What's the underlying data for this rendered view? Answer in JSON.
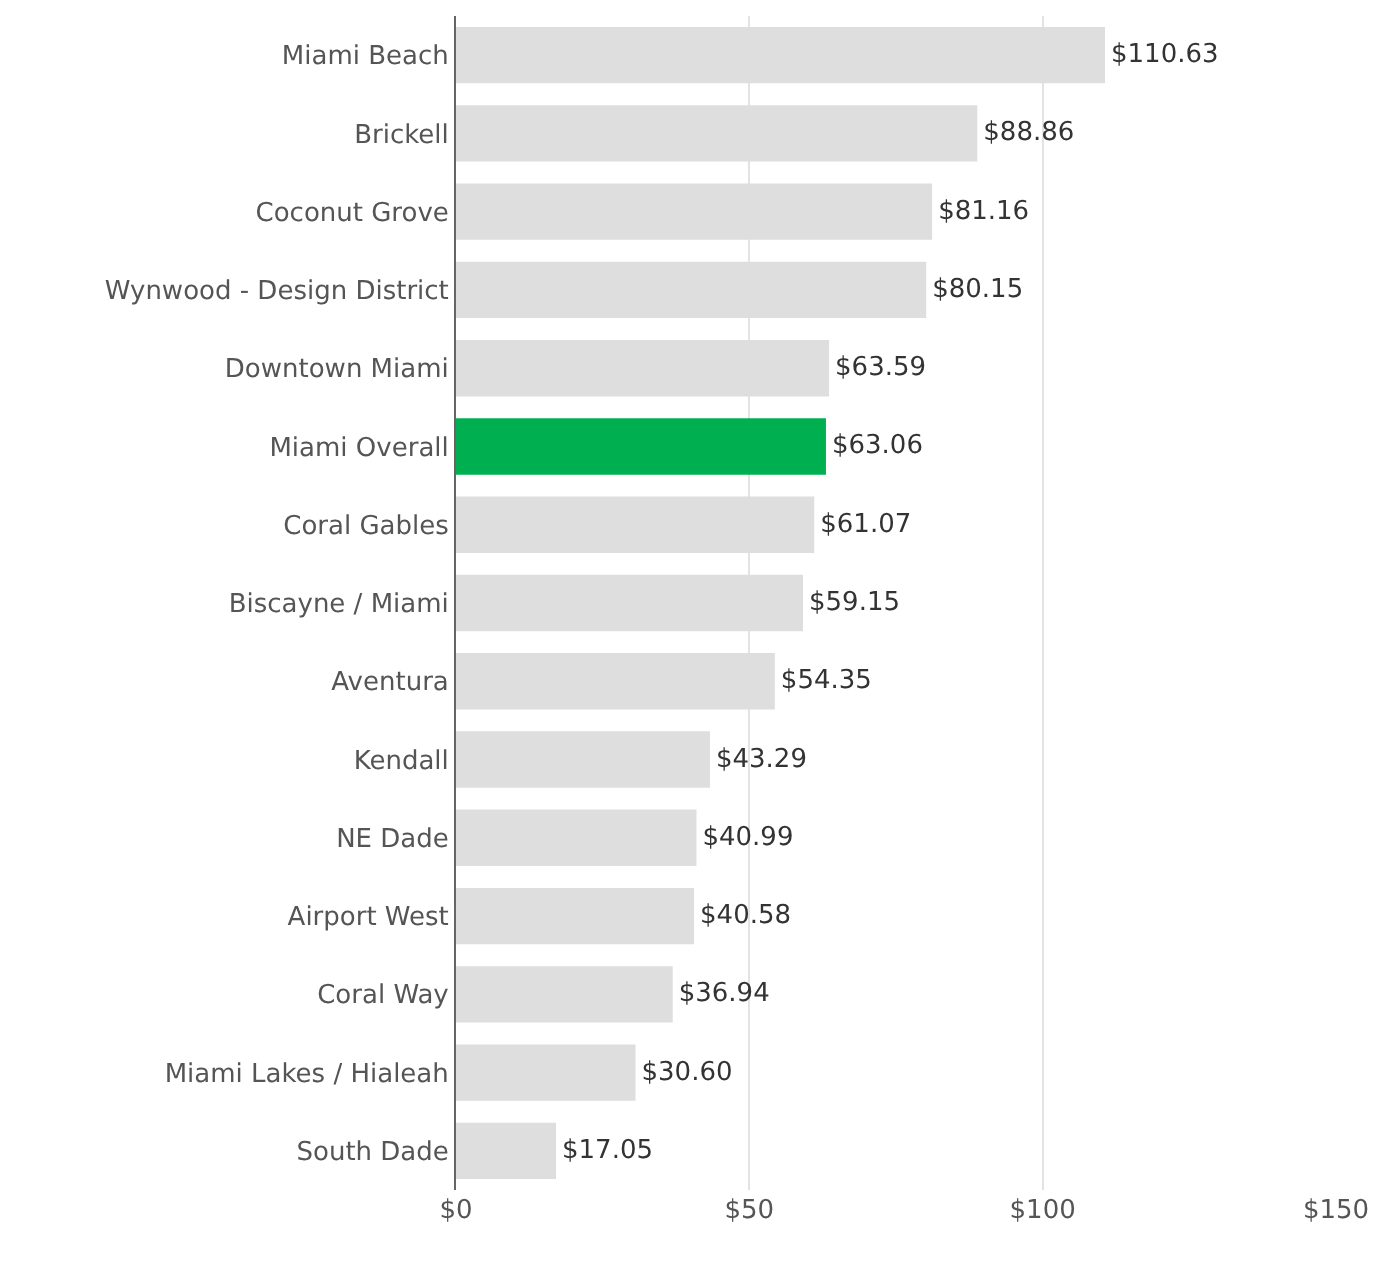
{
  "chart_data": {
    "type": "bar",
    "orientation": "horizontal",
    "categories": [
      "Miami Beach",
      "Brickell",
      "Coconut Grove",
      "Wynwood - Design District",
      "Downtown Miami",
      "Miami Overall",
      "Coral Gables",
      "Biscayne / Miami",
      "Aventura",
      "Kendall",
      "NE Dade",
      "Airport West",
      "Coral Way",
      "Miami Lakes / Hialeah",
      "South Dade"
    ],
    "values": [
      110.63,
      88.86,
      81.16,
      80.15,
      63.59,
      63.06,
      61.07,
      59.15,
      54.35,
      43.29,
      40.99,
      40.58,
      36.94,
      30.6,
      17.05
    ],
    "colors": [
      "#dedede",
      "#dedede",
      "#dedede",
      "#dedede",
      "#dedede",
      "#00b050",
      "#dedede",
      "#dedede",
      "#dedede",
      "#dedede",
      "#dedede",
      "#dedede",
      "#dedede",
      "#dedede",
      "#dedede"
    ],
    "value_labels": [
      "$110.63",
      "$88.86",
      "$81.16",
      "$80.15",
      "$63.59",
      "$63.06",
      "$61.07",
      "$59.15",
      "$54.35",
      "$43.29",
      "$40.99",
      "$40.58",
      "$36.94",
      "$30.60",
      "$17.05"
    ],
    "xlim": [
      0,
      150
    ],
    "xticks": [
      {
        "value": 0,
        "label": "$0"
      },
      {
        "value": 50,
        "label": "$50"
      },
      {
        "value": 100,
        "label": "$100"
      },
      {
        "value": 150,
        "label": "$150"
      }
    ],
    "grid": "x",
    "legend": false
  }
}
